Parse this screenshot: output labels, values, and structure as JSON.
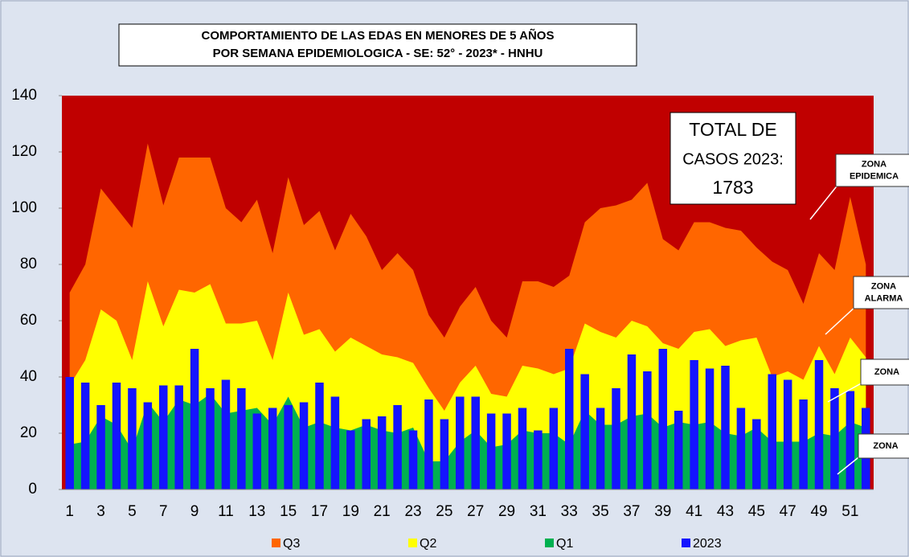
{
  "chart_data": {
    "type": "area_bar",
    "title": "COMPORTAMIENTO DE LAS EDAS EN MENORES DE 5 AÑOS",
    "subtitle": "POR SEMANA EPIDEMIOLOGICA - SE: 52° - 2023* - HNHU",
    "categories": [
      "1",
      null,
      "3",
      null,
      "5",
      null,
      "7",
      null,
      "9",
      null,
      "11",
      null,
      "13",
      null,
      "15",
      null,
      "17",
      null,
      "19",
      null,
      "21",
      null,
      "23",
      null,
      "25",
      null,
      "27",
      null,
      "29",
      null,
      "31",
      null,
      "33",
      null,
      "35",
      null,
      "37",
      null,
      "39",
      null,
      "41",
      null,
      "43",
      null,
      "45",
      null,
      "47",
      null,
      "49",
      null,
      "51",
      null
    ],
    "series": [
      {
        "name": "Q3",
        "kind": "area",
        "color": "#ff6600",
        "values": [
          70,
          80,
          107,
          100,
          93,
          123,
          101,
          118,
          118,
          118,
          100,
          95,
          103,
          84,
          111,
          94,
          99,
          85,
          98,
          90,
          78,
          84,
          78,
          62,
          54,
          65,
          72,
          60,
          54,
          74,
          74,
          72,
          76,
          95,
          100,
          101,
          103,
          109,
          89,
          85,
          95,
          95,
          93,
          92,
          86,
          81,
          78,
          66,
          84,
          78,
          104,
          80
        ]
      },
      {
        "name": "Q2",
        "kind": "area",
        "color": "#ffff00",
        "values": [
          37,
          46,
          64,
          60,
          46,
          74,
          58,
          71,
          70,
          73,
          59,
          59,
          60,
          46,
          70,
          55,
          57,
          49,
          54,
          51,
          48,
          47,
          45,
          36,
          28,
          38,
          44,
          34,
          33,
          44,
          43,
          41,
          43,
          59,
          56,
          54,
          60,
          58,
          52,
          50,
          56,
          57,
          51,
          53,
          54,
          40,
          42,
          39,
          51,
          41,
          54,
          47
        ]
      },
      {
        "name": "Q1",
        "kind": "area",
        "color": "#00b050",
        "values": [
          16,
          17,
          26,
          23,
          14,
          31,
          24,
          32,
          30,
          34,
          27,
          28,
          29,
          23,
          33,
          22,
          24,
          22,
          21,
          23,
          21,
          20,
          22,
          10,
          10,
          17,
          21,
          15,
          16,
          21,
          20,
          20,
          16,
          28,
          23,
          23,
          26,
          27,
          22,
          24,
          23,
          24,
          20,
          19,
          22,
          17,
          17,
          17,
          20,
          19,
          24,
          22
        ]
      },
      {
        "name": "2023",
        "kind": "bar",
        "color": "#1414ff",
        "values": [
          40,
          38,
          30,
          38,
          36,
          31,
          37,
          37,
          50,
          36,
          39,
          36,
          27,
          29,
          30,
          31,
          38,
          33,
          21,
          25,
          26,
          30,
          21,
          32,
          25,
          33,
          33,
          27,
          27,
          29,
          21,
          29,
          50,
          41,
          29,
          36,
          48,
          42,
          50,
          28,
          46,
          43,
          44,
          29,
          25,
          41,
          39,
          32,
          46,
          36,
          35,
          29
        ]
      }
    ],
    "ylim": [
      0,
      140
    ],
    "yticks": [
      0,
      20,
      40,
      60,
      80,
      100,
      120,
      140
    ],
    "plot_color": "#c00000",
    "annotations": [
      {
        "lines": [
          "TOTAL DE",
          "CASOS 2023:",
          "1783"
        ]
      },
      {
        "lines": [
          "ZONA",
          "EPIDEMICA"
        ]
      },
      {
        "lines": [
          "ZONA",
          "ALARMA"
        ]
      },
      {
        "lines": [
          "ZONA"
        ]
      },
      {
        "lines": [
          "ZONA"
        ]
      }
    ]
  }
}
